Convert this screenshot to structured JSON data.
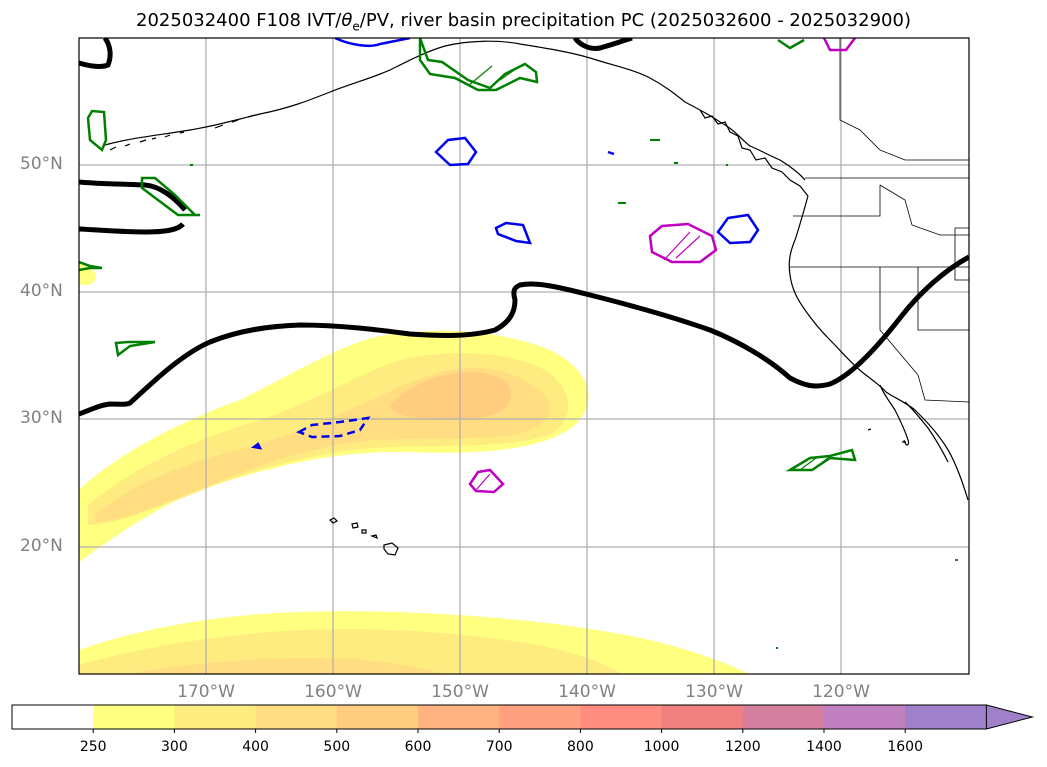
{
  "title": {
    "prefix": "2025032400 F108 IVT/",
    "theta": "θ",
    "sub": "e",
    "suffix": "/PV, river basin precipitation PC (2025032600 - 2025032900)"
  },
  "map": {
    "lat_labels": [
      "50°N",
      "40°N",
      "30°N",
      "20°N"
    ],
    "lon_labels": [
      "170°W",
      "160°W",
      "150°W",
      "140°W",
      "130°W",
      "120°W"
    ]
  },
  "colorbar": {
    "ticks": [
      "250",
      "300",
      "400",
      "500",
      "600",
      "700",
      "800",
      "1000",
      "1200",
      "1400",
      "1600"
    ],
    "colors": [
      "#ffffff",
      "#ffff80",
      "#ffec80",
      "#ffdd80",
      "#ffcc80",
      "#ffb380",
      "#ffa080",
      "#ff8c80",
      "#f08080",
      "#d680a0",
      "#c080c0",
      "#a080c8"
    ]
  }
}
